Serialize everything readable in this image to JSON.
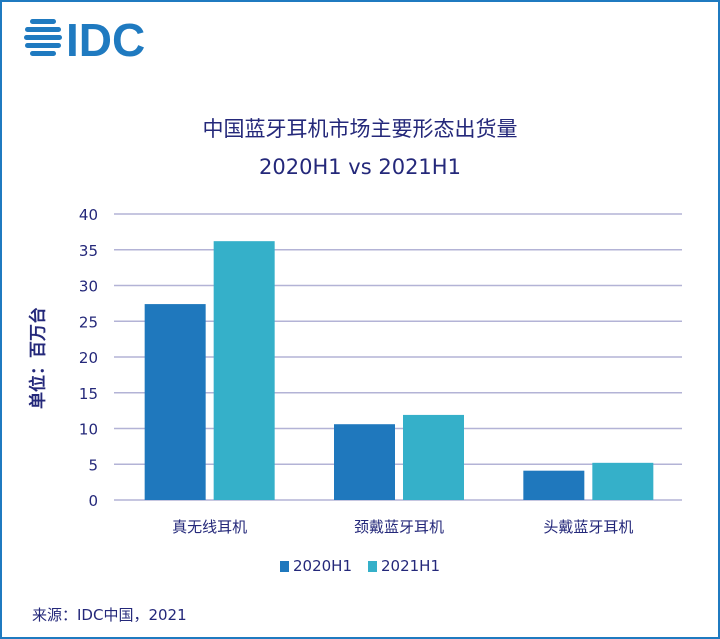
{
  "logo": {
    "text": "IDC",
    "color": "#1f7ac0"
  },
  "colors": {
    "border": "#1f7ac0",
    "text": "#24287a",
    "grid": "#b3b3d6"
  },
  "chart_data": {
    "type": "bar",
    "title": "中国蓝牙耳机市场主要形态出货量",
    "subtitle": "2020H1 vs 2021H1",
    "ylabel": "单位：百万台",
    "xlabel": "",
    "ylim": [
      0,
      40
    ],
    "yticks": [
      0,
      5,
      10,
      15,
      20,
      25,
      30,
      35,
      40
    ],
    "grid": true,
    "legend_position": "bottom",
    "categories": [
      "真无线耳机",
      "颈戴蓝牙耳机",
      "头戴蓝牙耳机"
    ],
    "series": [
      {
        "name": "2020H1",
        "color": "#1f78bd",
        "values": [
          27.4,
          10.6,
          4.1
        ]
      },
      {
        "name": "2021H1",
        "color": "#35b0c9",
        "values": [
          36.2,
          11.9,
          5.2
        ]
      }
    ]
  },
  "source": "来源：IDC中国，2021"
}
